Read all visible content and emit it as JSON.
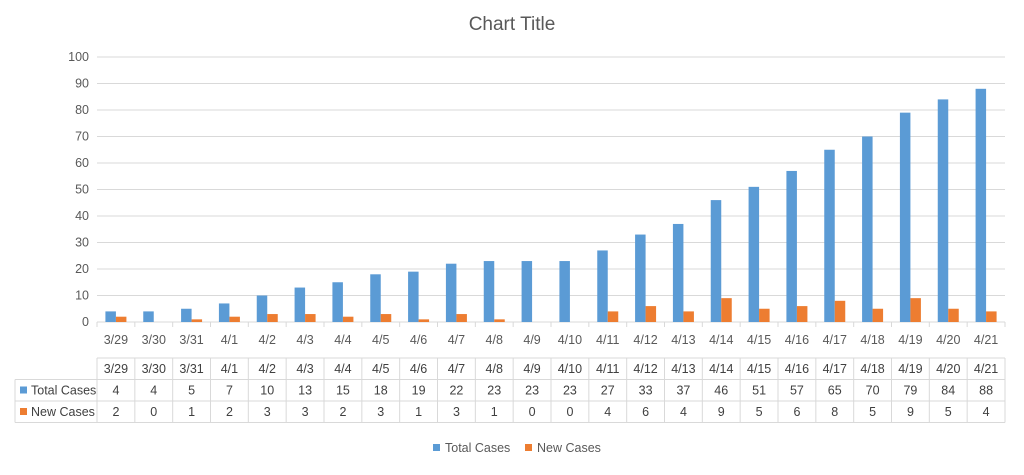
{
  "chart_data": {
    "type": "bar",
    "title": "Chart Title",
    "categories": [
      "3/29",
      "3/30",
      "3/31",
      "4/1",
      "4/2",
      "4/3",
      "4/4",
      "4/5",
      "4/6",
      "4/7",
      "4/8",
      "4/9",
      "4/10",
      "4/11",
      "4/12",
      "4/13",
      "4/14",
      "4/15",
      "4/16",
      "4/17",
      "4/18",
      "4/19",
      "4/20",
      "4/21"
    ],
    "series": [
      {
        "name": "Total Cases",
        "color": "#5B9BD5",
        "values": [
          4,
          4,
          5,
          7,
          10,
          13,
          15,
          18,
          19,
          22,
          23,
          23,
          23,
          27,
          33,
          37,
          46,
          51,
          57,
          65,
          70,
          79,
          84,
          88
        ]
      },
      {
        "name": "New Cases",
        "color": "#ED7D31",
        "values": [
          2,
          0,
          1,
          2,
          3,
          3,
          2,
          3,
          1,
          3,
          1,
          0,
          0,
          4,
          6,
          4,
          9,
          5,
          6,
          8,
          5,
          9,
          5,
          4
        ]
      }
    ],
    "ylim": [
      0,
      100
    ],
    "yticks": [
      0,
      10,
      20,
      30,
      40,
      50,
      60,
      70,
      80,
      90,
      100
    ],
    "grid": true,
    "data_table": true,
    "legend_position": "bottom"
  }
}
